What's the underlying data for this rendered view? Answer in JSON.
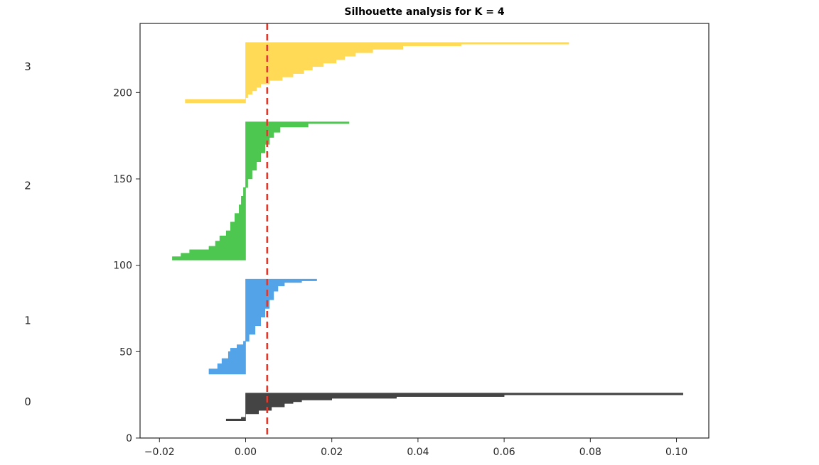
{
  "chart_data": {
    "type": "area",
    "title": "Silhouette analysis for K = 4",
    "xlabel": "",
    "ylabel": "",
    "xlim": [
      -0.0245,
      0.1075
    ],
    "ylim": [
      0,
      240
    ],
    "xticks": [
      -0.02,
      0.0,
      0.02,
      0.04,
      0.06,
      0.08,
      0.1
    ],
    "xtick_labels": [
      "−0.02",
      "0.00",
      "0.02",
      "0.04",
      "0.06",
      "0.08",
      "0.10"
    ],
    "yticks": [
      0,
      50,
      100,
      150,
      200
    ],
    "ytick_labels": [
      "0",
      "50",
      "100",
      "150",
      "200"
    ],
    "grid": false,
    "reference_line": {
      "x": 0.005,
      "color": "#e03a2f",
      "style": "dashed"
    },
    "clusters": [
      {
        "label": "0",
        "label_y": 21,
        "color": "#3a3a3a",
        "y_range": [
          10,
          26
        ],
        "profile": [
          [
            10,
            -0.0045
          ],
          [
            11,
            -0.001
          ],
          [
            12,
            0.0
          ],
          [
            13,
            0.0
          ],
          [
            14,
            0.003
          ],
          [
            16,
            0.006
          ],
          [
            18,
            0.009
          ],
          [
            20,
            0.011
          ],
          [
            21,
            0.013
          ],
          [
            22,
            0.02
          ],
          [
            23,
            0.035
          ],
          [
            24,
            0.06
          ],
          [
            25,
            0.1015
          ],
          [
            26,
            0.1015
          ]
        ]
      },
      {
        "label": "1",
        "label_y": 68,
        "color": "#4a9ee8",
        "y_range": [
          37,
          92
        ],
        "profile": [
          [
            37,
            -0.0085
          ],
          [
            40,
            -0.0065
          ],
          [
            43,
            -0.0055
          ],
          [
            46,
            -0.004
          ],
          [
            50,
            -0.0035
          ],
          [
            52,
            -0.002
          ],
          [
            54,
            -0.0005
          ],
          [
            56,
            0.0008
          ],
          [
            60,
            0.0022
          ],
          [
            65,
            0.0035
          ],
          [
            70,
            0.0045
          ],
          [
            75,
            0.0055
          ],
          [
            80,
            0.0065
          ],
          [
            85,
            0.0075
          ],
          [
            88,
            0.009
          ],
          [
            90,
            0.013
          ],
          [
            91,
            0.0165
          ],
          [
            92,
            0.0165
          ]
        ]
      },
      {
        "label": "2",
        "label_y": 146,
        "color": "#44c447",
        "y_range": [
          103,
          183
        ],
        "profile": [
          [
            103,
            -0.017
          ],
          [
            105,
            -0.015
          ],
          [
            107,
            -0.013
          ],
          [
            109,
            -0.0085
          ],
          [
            111,
            -0.007
          ],
          [
            114,
            -0.006
          ],
          [
            117,
            -0.0045
          ],
          [
            120,
            -0.0035
          ],
          [
            125,
            -0.0025
          ],
          [
            130,
            -0.0015
          ],
          [
            135,
            -0.001
          ],
          [
            140,
            -0.0005
          ],
          [
            145,
            0.0005
          ],
          [
            150,
            0.0015
          ],
          [
            155,
            0.0025
          ],
          [
            160,
            0.0035
          ],
          [
            165,
            0.0045
          ],
          [
            170,
            0.0055
          ],
          [
            174,
            0.0065
          ],
          [
            177,
            0.008
          ],
          [
            180,
            0.0145
          ],
          [
            182,
            0.024
          ],
          [
            183,
            0.024
          ]
        ]
      },
      {
        "label": "3",
        "label_y": 215,
        "color": "#ffd84d",
        "y_range": [
          194,
          229
        ],
        "profile": [
          [
            194,
            -0.014
          ],
          [
            195,
            -0.014
          ],
          [
            196,
            0.0
          ],
          [
            197,
            0.0005
          ],
          [
            199,
            0.0015
          ],
          [
            201,
            0.0025
          ],
          [
            203,
            0.0035
          ],
          [
            205,
            0.0055
          ],
          [
            207,
            0.0085
          ],
          [
            209,
            0.011
          ],
          [
            211,
            0.0135
          ],
          [
            213,
            0.0155
          ],
          [
            215,
            0.018
          ],
          [
            217,
            0.021
          ],
          [
            219,
            0.023
          ],
          [
            221,
            0.0255
          ],
          [
            223,
            0.0295
          ],
          [
            225,
            0.0365
          ],
          [
            227,
            0.05
          ],
          [
            228,
            0.075
          ],
          [
            229,
            0.075
          ]
        ]
      }
    ]
  }
}
